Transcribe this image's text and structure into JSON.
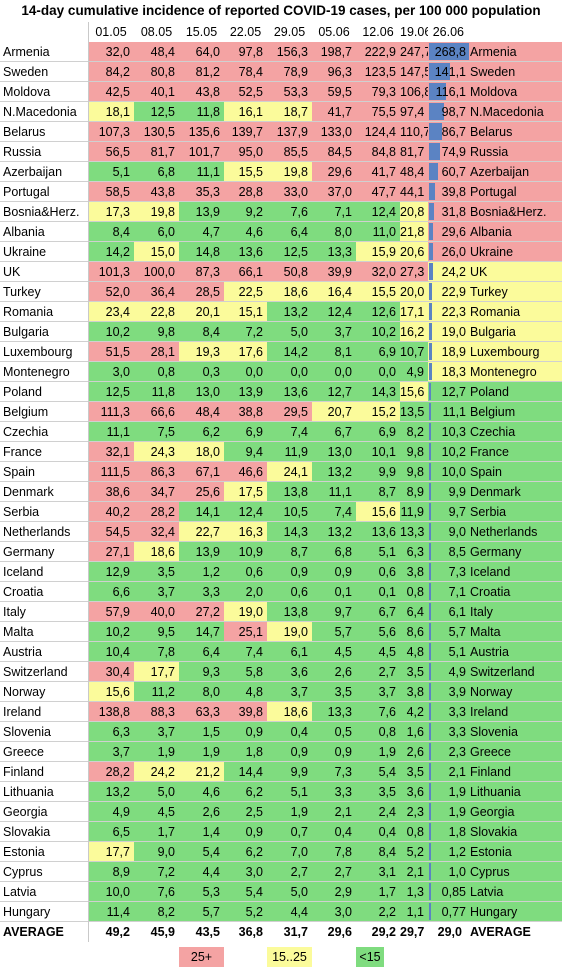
{
  "title": "14-day cumulative incidence of reported COVID-19 cases, per 100 000 population",
  "colors": {
    "red": "#f4a3a3",
    "yellow": "#fbfb9b",
    "green": "#7fdc7f",
    "bar": "#5b83c3"
  },
  "legend": {
    "red": "25+",
    "yellow": "15..25",
    "green": "<15"
  },
  "chart_data": {
    "type": "table",
    "columns": [
      "01.05",
      "08.05",
      "15.05",
      "22.05",
      "29.05",
      "05.06",
      "12.06",
      "19.06",
      "26.06"
    ],
    "rows": [
      {
        "country": "Armenia",
        "values": [
          "32,0",
          "48,4",
          "64,0",
          "97,8",
          "156,3",
          "198,7",
          "222,9",
          "247,7",
          "268,8"
        ]
      },
      {
        "country": "Sweden",
        "values": [
          "84,2",
          "80,8",
          "81,2",
          "78,4",
          "78,9",
          "96,3",
          "123,5",
          "147,5",
          "141,1"
        ]
      },
      {
        "country": "Moldova",
        "values": [
          "42,5",
          "40,1",
          "43,8",
          "52,5",
          "53,3",
          "59,5",
          "79,3",
          "106,8",
          "116,1"
        ]
      },
      {
        "country": "N.Macedonia",
        "values": [
          "18,1",
          "12,5",
          "11,8",
          "16,1",
          "18,7",
          "41,7",
          "75,5",
          "97,4",
          "98,7"
        ]
      },
      {
        "country": "Belarus",
        "values": [
          "107,3",
          "130,5",
          "135,6",
          "139,7",
          "137,9",
          "133,0",
          "124,4",
          "110,7",
          "86,7"
        ]
      },
      {
        "country": "Russia",
        "values": [
          "56,5",
          "81,7",
          "101,7",
          "95,0",
          "85,5",
          "84,5",
          "84,8",
          "81,7",
          "74,9"
        ]
      },
      {
        "country": "Azerbaijan",
        "values": [
          "5,1",
          "6,8",
          "11,1",
          "15,5",
          "19,8",
          "29,6",
          "41,7",
          "48,4",
          "60,7"
        ]
      },
      {
        "country": "Portugal",
        "values": [
          "58,5",
          "43,8",
          "35,3",
          "28,8",
          "33,0",
          "37,0",
          "47,7",
          "44,1",
          "39,8"
        ]
      },
      {
        "country": "Bosnia&Herz.",
        "values": [
          "17,3",
          "19,8",
          "13,9",
          "9,2",
          "7,6",
          "7,1",
          "12,4",
          "20,8",
          "31,8"
        ]
      },
      {
        "country": "Albania",
        "values": [
          "8,4",
          "6,0",
          "4,7",
          "4,6",
          "6,4",
          "8,0",
          "11,0",
          "21,8",
          "29,6"
        ]
      },
      {
        "country": "Ukraine",
        "values": [
          "14,2",
          "15,0",
          "14,8",
          "13,6",
          "12,5",
          "13,3",
          "15,9",
          "20,6",
          "26,0"
        ]
      },
      {
        "country": "UK",
        "values": [
          "101,3",
          "100,0",
          "87,3",
          "66,1",
          "50,8",
          "39,9",
          "32,0",
          "27,3",
          "24,2"
        ]
      },
      {
        "country": "Turkey",
        "values": [
          "52,0",
          "36,4",
          "28,5",
          "22,5",
          "18,6",
          "16,4",
          "15,5",
          "20,0",
          "22,9"
        ]
      },
      {
        "country": "Romania",
        "values": [
          "23,4",
          "22,8",
          "20,1",
          "15,1",
          "13,2",
          "12,4",
          "12,6",
          "17,1",
          "22,3"
        ]
      },
      {
        "country": "Bulgaria",
        "values": [
          "10,2",
          "9,8",
          "8,4",
          "7,2",
          "5,0",
          "3,7",
          "10,2",
          "16,2",
          "19,0"
        ]
      },
      {
        "country": "Luxembourg",
        "values": [
          "51,5",
          "28,1",
          "19,3",
          "17,6",
          "14,2",
          "8,1",
          "6,9",
          "10,7",
          "18,9"
        ]
      },
      {
        "country": "Montenegro",
        "values": [
          "3,0",
          "0,8",
          "0,3",
          "0,0",
          "0,0",
          "0,0",
          "0,0",
          "4,9",
          "18,3"
        ]
      },
      {
        "country": "Poland",
        "values": [
          "12,5",
          "11,8",
          "13,0",
          "13,9",
          "13,6",
          "12,7",
          "14,3",
          "15,6",
          "12,7"
        ]
      },
      {
        "country": "Belgium",
        "values": [
          "111,3",
          "66,6",
          "48,4",
          "38,8",
          "29,5",
          "20,7",
          "15,2",
          "13,5",
          "11,1"
        ]
      },
      {
        "country": "Czechia",
        "values": [
          "11,1",
          "7,5",
          "6,2",
          "6,9",
          "7,4",
          "6,7",
          "6,9",
          "8,2",
          "10,3"
        ]
      },
      {
        "country": "France",
        "values": [
          "32,1",
          "24,3",
          "18,0",
          "9,4",
          "11,9",
          "13,0",
          "10,1",
          "9,8",
          "10,2"
        ]
      },
      {
        "country": "Spain",
        "values": [
          "111,5",
          "86,3",
          "67,1",
          "46,6",
          "24,1",
          "13,2",
          "9,9",
          "9,8",
          "10,0"
        ]
      },
      {
        "country": "Denmark",
        "values": [
          "38,6",
          "34,7",
          "25,6",
          "17,5",
          "13,8",
          "11,1",
          "8,7",
          "8,9",
          "9,9"
        ]
      },
      {
        "country": "Serbia",
        "values": [
          "40,2",
          "28,2",
          "14,1",
          "12,4",
          "10,5",
          "7,4",
          "15,6",
          "11,9",
          "9,7"
        ]
      },
      {
        "country": "Netherlands",
        "values": [
          "54,5",
          "32,4",
          "22,7",
          "16,3",
          "14,3",
          "13,2",
          "13,6",
          "13,3",
          "9,0"
        ]
      },
      {
        "country": "Germany",
        "values": [
          "27,1",
          "18,6",
          "13,9",
          "10,9",
          "8,7",
          "6,8",
          "5,1",
          "6,3",
          "8,5"
        ]
      },
      {
        "country": "Iceland",
        "values": [
          "12,9",
          "3,5",
          "1,2",
          "0,6",
          "0,9",
          "0,9",
          "0,6",
          "3,8",
          "7,3"
        ]
      },
      {
        "country": "Croatia",
        "values": [
          "6,6",
          "3,7",
          "3,3",
          "2,0",
          "0,6",
          "0,1",
          "0,1",
          "0,8",
          "7,1"
        ]
      },
      {
        "country": "Italy",
        "values": [
          "57,9",
          "40,0",
          "27,2",
          "19,0",
          "13,8",
          "9,7",
          "6,7",
          "6,4",
          "6,1"
        ]
      },
      {
        "country": "Malta",
        "values": [
          "10,2",
          "9,5",
          "14,7",
          "25,1",
          "19,0",
          "5,7",
          "5,6",
          "8,6",
          "5,7"
        ]
      },
      {
        "country": "Austria",
        "values": [
          "10,4",
          "7,8",
          "6,4",
          "7,4",
          "6,1",
          "4,5",
          "4,5",
          "4,8",
          "5,1"
        ]
      },
      {
        "country": "Switzerland",
        "values": [
          "30,4",
          "17,7",
          "9,3",
          "5,8",
          "3,6",
          "2,6",
          "2,7",
          "3,5",
          "4,9"
        ]
      },
      {
        "country": "Norway",
        "values": [
          "15,6",
          "11,2",
          "8,0",
          "4,8",
          "3,7",
          "3,5",
          "3,7",
          "3,8",
          "3,9"
        ]
      },
      {
        "country": "Ireland",
        "values": [
          "138,8",
          "88,3",
          "63,3",
          "39,8",
          "18,6",
          "13,3",
          "7,6",
          "4,2",
          "3,3"
        ]
      },
      {
        "country": "Slovenia",
        "values": [
          "6,3",
          "3,7",
          "1,5",
          "0,9",
          "0,4",
          "0,5",
          "0,8",
          "1,6",
          "3,3"
        ]
      },
      {
        "country": "Greece",
        "values": [
          "3,7",
          "1,9",
          "1,9",
          "1,8",
          "0,9",
          "0,9",
          "1,9",
          "2,6",
          "2,3"
        ]
      },
      {
        "country": "Finland",
        "values": [
          "28,2",
          "24,2",
          "21,2",
          "14,4",
          "9,9",
          "7,3",
          "5,4",
          "3,5",
          "2,1"
        ]
      },
      {
        "country": "Lithuania",
        "values": [
          "13,2",
          "5,0",
          "4,6",
          "6,2",
          "5,1",
          "3,3",
          "3,5",
          "3,6",
          "1,9"
        ]
      },
      {
        "country": "Georgia",
        "values": [
          "4,9",
          "4,5",
          "2,6",
          "2,5",
          "1,9",
          "2,1",
          "2,4",
          "2,3",
          "1,9"
        ]
      },
      {
        "country": "Slovakia",
        "values": [
          "6,5",
          "1,7",
          "1,4",
          "0,9",
          "0,7",
          "0,4",
          "0,4",
          "0,8",
          "1,8"
        ]
      },
      {
        "country": "Estonia",
        "values": [
          "17,7",
          "9,0",
          "5,4",
          "6,2",
          "7,0",
          "7,8",
          "8,4",
          "5,2",
          "1,2"
        ]
      },
      {
        "country": "Cyprus",
        "values": [
          "8,9",
          "7,2",
          "4,4",
          "3,0",
          "2,7",
          "2,7",
          "3,1",
          "2,1",
          "1,0"
        ]
      },
      {
        "country": "Latvia",
        "values": [
          "10,0",
          "7,6",
          "5,3",
          "5,4",
          "5,0",
          "2,9",
          "1,7",
          "1,3",
          "0,85"
        ]
      },
      {
        "country": "Hungary",
        "values": [
          "11,4",
          "8,2",
          "5,7",
          "5,2",
          "4,4",
          "3,0",
          "2,2",
          "1,1",
          "0,77"
        ]
      }
    ],
    "average": {
      "label": "AVERAGE",
      "values": [
        "49,2",
        "45,9",
        "43,5",
        "36,8",
        "31,7",
        "29,6",
        "29,2",
        "29,7",
        "29,0"
      ]
    }
  }
}
